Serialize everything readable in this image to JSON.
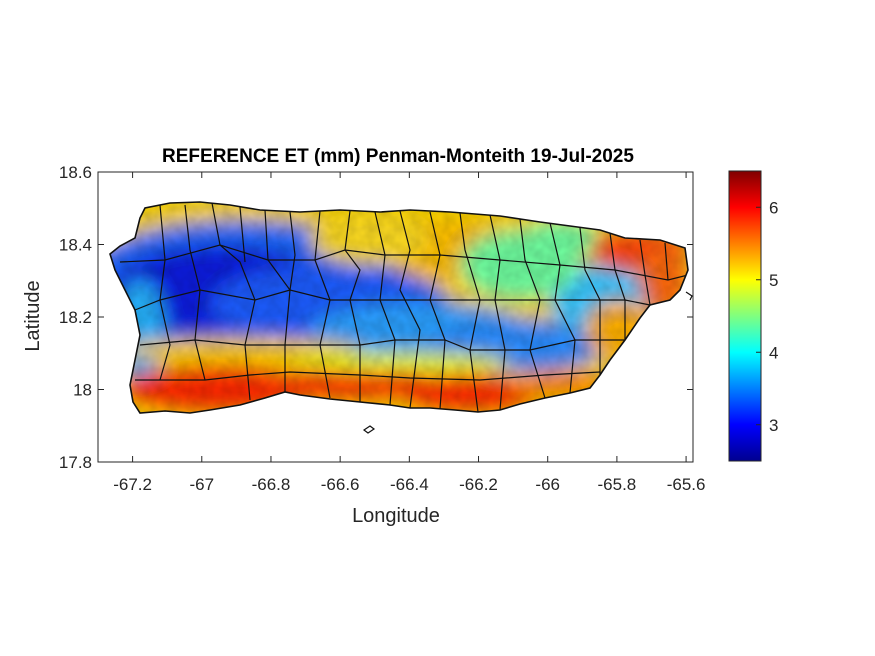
{
  "map": {
    "title": "REFERENCE ET (mm) Penman-Monteith 19-Jul-2025",
    "xlabel": "Longitude",
    "ylabel": "Latitude",
    "xlim": [
      -67.3,
      -65.58
    ],
    "ylim": [
      17.8,
      18.6
    ],
    "x_ticks": [
      {
        "value": -67.2,
        "label": "-67.2"
      },
      {
        "value": -67.0,
        "label": "-67"
      },
      {
        "value": -66.8,
        "label": "-66.8"
      },
      {
        "value": -66.6,
        "label": "-66.6"
      },
      {
        "value": -66.4,
        "label": "-66.4"
      },
      {
        "value": -66.2,
        "label": "-66.2"
      },
      {
        "value": -66.0,
        "label": "-66"
      },
      {
        "value": -65.8,
        "label": "-65.8"
      },
      {
        "value": -65.6,
        "label": "-65.6"
      }
    ],
    "y_ticks": [
      {
        "value": 18.6,
        "label": "18.6"
      },
      {
        "value": 18.4,
        "label": "18.4"
      },
      {
        "value": 18.2,
        "label": "18.2"
      },
      {
        "value": 18.0,
        "label": "18"
      },
      {
        "value": 17.8,
        "label": "17.8"
      }
    ],
    "grid": false,
    "colormap": "jet",
    "colorbar": {
      "range": [
        2.5,
        6.5
      ],
      "ticks": [
        {
          "value": 3,
          "label": "3"
        },
        {
          "value": 4,
          "label": "4"
        },
        {
          "value": 5,
          "label": "5"
        },
        {
          "value": 6,
          "label": "6"
        }
      ],
      "placement": "right"
    }
  }
}
